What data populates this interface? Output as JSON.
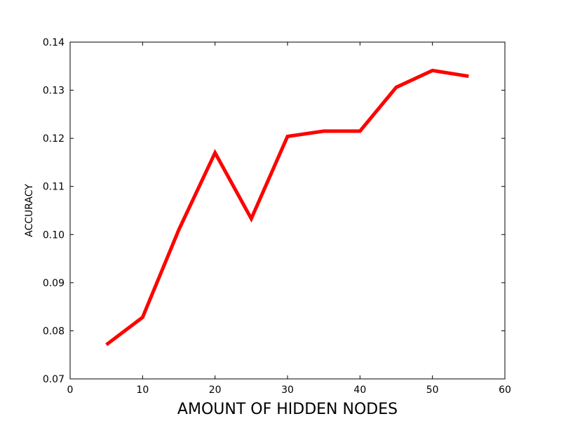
{
  "chart_data": {
    "type": "line",
    "title": "",
    "xlabel": "AMOUNT OF HIDDEN NODES",
    "ylabel": "ACCURACY",
    "xlim": [
      0,
      60
    ],
    "ylim": [
      0.07,
      0.14
    ],
    "xticks": [
      0,
      10,
      20,
      30,
      40,
      50,
      60
    ],
    "yticks": [
      0.07,
      0.08,
      0.09,
      0.1,
      0.11,
      0.12,
      0.13,
      0.14
    ],
    "xtick_labels": [
      "0",
      "10",
      "20",
      "30",
      "40",
      "50",
      "60"
    ],
    "ytick_labels": [
      "0.07",
      "0.08",
      "0.09",
      "0.10",
      "0.11",
      "0.12",
      "0.13",
      "0.14"
    ],
    "grid": false,
    "series": [
      {
        "color": "#ff0000",
        "x": [
          5,
          10,
          15,
          20,
          25,
          30,
          35,
          40,
          45,
          50,
          55
        ],
        "y": [
          0.0771,
          0.0828,
          0.101,
          0.117,
          0.1033,
          0.1204,
          0.1215,
          0.1215,
          0.1306,
          0.1341,
          0.1329
        ]
      }
    ]
  }
}
